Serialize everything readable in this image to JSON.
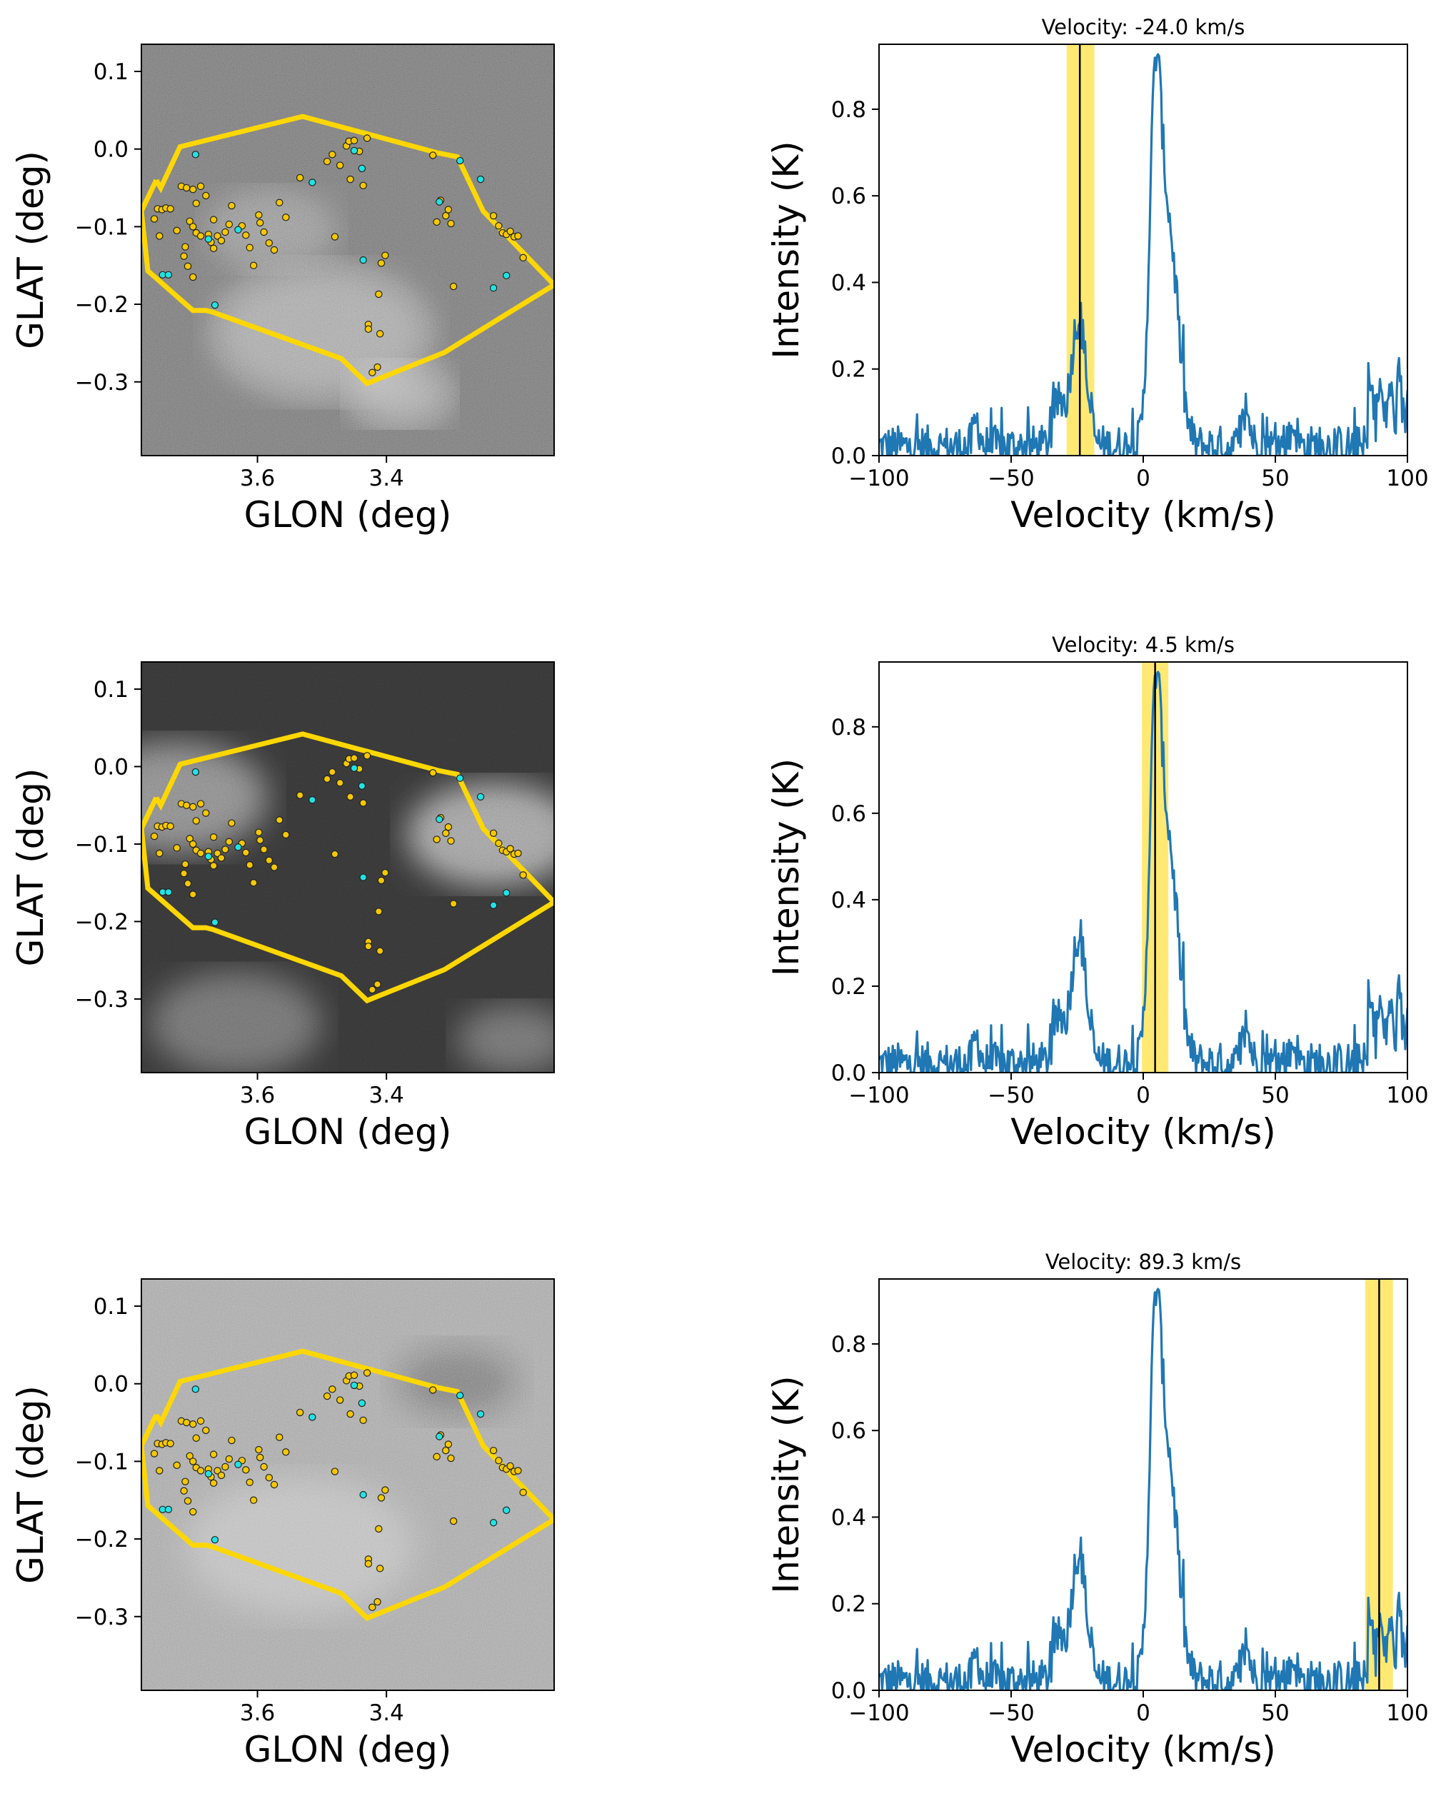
{
  "chart_data": [
    {
      "type": "image",
      "panel": "sky-map-1",
      "xlabel": "GLON (deg)",
      "ylabel": "GLAT (deg)",
      "xlim": [
        3.78,
        3.14
      ],
      "ylim": [
        -0.395,
        0.135
      ],
      "xticks": [
        3.6,
        3.4
      ],
      "xtick_labels": [
        "3.6",
        "3.4"
      ],
      "yticks": [
        0.1,
        0.0,
        -0.1,
        -0.2,
        -0.3
      ],
      "ytick_labels": [
        "0.1",
        "0.0",
        "−0.1",
        "−0.2",
        "−0.3"
      ],
      "background": "grayscale intensity map integrated around -24.0 km/s"
    },
    {
      "type": "line",
      "panel": "spectrum-1",
      "title": "Velocity: -24.0 km/s",
      "xlabel": "Velocity (km/s)",
      "ylabel": "Intensity (K)",
      "xlim": [
        -100,
        100
      ],
      "ylim": [
        0,
        0.95
      ],
      "xticks": [
        -100,
        -50,
        0,
        50,
        100
      ],
      "xtick_labels": [
        "−100",
        "−50",
        "0",
        "50",
        "100"
      ],
      "yticks": [
        0.0,
        0.2,
        0.4,
        0.6,
        0.8
      ],
      "ytick_labels": [
        "0.0",
        "0.2",
        "0.4",
        "0.6",
        "0.8"
      ],
      "marker_velocity": -24.0,
      "highlight_band": [
        -29.0,
        -18.5
      ]
    },
    {
      "type": "image",
      "panel": "sky-map-2",
      "xlabel": "GLON (deg)",
      "ylabel": "GLAT (deg)",
      "xlim": [
        3.78,
        3.14
      ],
      "ylim": [
        -0.395,
        0.135
      ],
      "xticks": [
        3.6,
        3.4
      ],
      "xtick_labels": [
        "3.6",
        "3.4"
      ],
      "yticks": [
        0.1,
        0.0,
        -0.1,
        -0.2,
        -0.3
      ],
      "ytick_labels": [
        "0.1",
        "0.0",
        "−0.1",
        "−0.2",
        "−0.3"
      ],
      "background": "grayscale intensity map integrated around 4.5 km/s"
    },
    {
      "type": "line",
      "panel": "spectrum-2",
      "title": "Velocity: 4.5 km/s",
      "xlabel": "Velocity (km/s)",
      "ylabel": "Intensity (K)",
      "xlim": [
        -100,
        100
      ],
      "ylim": [
        0,
        0.95
      ],
      "xticks": [
        -100,
        -50,
        0,
        50,
        100
      ],
      "xtick_labels": [
        "−100",
        "−50",
        "0",
        "50",
        "100"
      ],
      "yticks": [
        0.0,
        0.2,
        0.4,
        0.6,
        0.8
      ],
      "ytick_labels": [
        "0.0",
        "0.2",
        "0.4",
        "0.6",
        "0.8"
      ],
      "marker_velocity": 4.5,
      "highlight_band": [
        -0.5,
        9.5
      ]
    },
    {
      "type": "image",
      "panel": "sky-map-3",
      "xlabel": "GLON (deg)",
      "ylabel": "GLAT (deg)",
      "xlim": [
        3.78,
        3.14
      ],
      "ylim": [
        -0.395,
        0.135
      ],
      "xticks": [
        3.6,
        3.4
      ],
      "xtick_labels": [
        "3.6",
        "3.4"
      ],
      "yticks": [
        0.1,
        0.0,
        -0.1,
        -0.2,
        -0.3
      ],
      "ytick_labels": [
        "0.1",
        "0.0",
        "−0.1",
        "−0.2",
        "−0.3"
      ],
      "background": "grayscale intensity map integrated around 89.3 km/s"
    },
    {
      "type": "line",
      "panel": "spectrum-3",
      "title": "Velocity: 89.3 km/s",
      "xlabel": "Velocity (km/s)",
      "ylabel": "Intensity (K)",
      "xlim": [
        -100,
        100
      ],
      "ylim": [
        0,
        0.95
      ],
      "xticks": [
        -100,
        -50,
        0,
        50,
        100
      ],
      "xtick_labels": [
        "−100",
        "−50",
        "0",
        "50",
        "100"
      ],
      "yticks": [
        0.0,
        0.2,
        0.4,
        0.6,
        0.8
      ],
      "ytick_labels": [
        "0.0",
        "0.2",
        "0.4",
        "0.6",
        "0.8"
      ],
      "marker_velocity": 89.3,
      "highlight_band": [
        84.0,
        94.5
      ]
    }
  ],
  "region_polygon": {
    "color": "#ffd700",
    "glon": [
      3.757,
      3.75,
      3.72,
      3.53,
      3.32,
      3.29,
      3.25,
      3.14,
      3.31,
      3.43,
      3.47,
      3.67,
      3.68,
      3.7,
      3.77,
      3.78,
      3.757
    ],
    "glat": [
      -0.04,
      -0.05,
      0.003,
      0.042,
      -0.005,
      -0.01,
      -0.08,
      -0.175,
      -0.262,
      -0.302,
      -0.27,
      -0.21,
      -0.208,
      -0.208,
      -0.157,
      -0.08,
      -0.04
    ]
  },
  "sources": {
    "yellow_color": "#f5c800",
    "cyan_color": "#22e3e3",
    "yellow": [
      [
        3.755,
        -0.077
      ],
      [
        3.748,
        -0.078
      ],
      [
        3.742,
        -0.076
      ],
      [
        3.735,
        -0.077
      ],
      [
        3.76,
        -0.09
      ],
      [
        3.752,
        -0.112
      ],
      [
        3.725,
        -0.105
      ],
      [
        3.718,
        -0.048
      ],
      [
        3.71,
        -0.05
      ],
      [
        3.7,
        -0.052
      ],
      [
        3.695,
        -0.07
      ],
      [
        3.705,
        -0.093
      ],
      [
        3.7,
        -0.1
      ],
      [
        3.695,
        -0.108
      ],
      [
        3.712,
        -0.126
      ],
      [
        3.708,
        -0.151
      ],
      [
        3.7,
        -0.165
      ],
      [
        3.688,
        -0.048
      ],
      [
        3.68,
        -0.06
      ],
      [
        3.676,
        -0.11
      ],
      [
        3.672,
        -0.12
      ],
      [
        3.668,
        -0.128
      ],
      [
        3.662,
        -0.112
      ],
      [
        3.656,
        -0.118
      ],
      [
        3.65,
        -0.107
      ],
      [
        3.644,
        -0.097
      ],
      [
        3.668,
        -0.091
      ],
      [
        3.64,
        -0.073
      ],
      [
        3.624,
        -0.099
      ],
      [
        3.618,
        -0.111
      ],
      [
        3.612,
        -0.127
      ],
      [
        3.606,
        -0.15
      ],
      [
        3.596,
        -0.095
      ],
      [
        3.59,
        -0.107
      ],
      [
        3.582,
        -0.121
      ],
      [
        3.574,
        -0.13
      ],
      [
        3.566,
        -0.069
      ],
      [
        3.534,
        -0.037
      ],
      [
        3.492,
        -0.016
      ],
      [
        3.484,
        -0.007
      ],
      [
        3.472,
        -0.021
      ],
      [
        3.462,
        0.004
      ],
      [
        3.458,
        0.01
      ],
      [
        3.45,
        0.011
      ],
      [
        3.442,
        -0.003
      ],
      [
        3.436,
        -0.047
      ],
      [
        3.43,
        0.014
      ],
      [
        3.456,
        -0.039
      ],
      [
        3.41,
        -0.238
      ],
      [
        3.422,
        -0.288
      ],
      [
        3.414,
        -0.281
      ],
      [
        3.428,
        -0.226
      ],
      [
        3.428,
        -0.232
      ],
      [
        3.412,
        -0.187
      ],
      [
        3.402,
        -0.137
      ],
      [
        3.408,
        -0.147
      ],
      [
        3.48,
        -0.113
      ],
      [
        3.328,
        -0.008
      ],
      [
        3.316,
        -0.066
      ],
      [
        3.308,
        -0.086
      ],
      [
        3.304,
        -0.078
      ],
      [
        3.3,
        -0.096
      ],
      [
        3.296,
        -0.177
      ],
      [
        3.322,
        -0.094
      ],
      [
        3.234,
        -0.086
      ],
      [
        3.226,
        -0.099
      ],
      [
        3.22,
        -0.108
      ],
      [
        3.214,
        -0.11
      ],
      [
        3.208,
        -0.106
      ],
      [
        3.202,
        -0.113
      ],
      [
        3.196,
        -0.112
      ],
      [
        3.188,
        -0.14
      ],
      [
        3.714,
        -0.138
      ],
      [
        3.688,
        -0.112
      ],
      [
        3.598,
        -0.085
      ],
      [
        3.556,
        -0.088
      ]
    ],
    "cyan": [
      [
        3.747,
        -0.162
      ],
      [
        3.738,
        -0.162
      ],
      [
        3.696,
        -0.007
      ],
      [
        3.676,
        -0.116
      ],
      [
        3.666,
        -0.201
      ],
      [
        3.63,
        -0.104
      ],
      [
        3.515,
        -0.043
      ],
      [
        3.45,
        -0.002
      ],
      [
        3.438,
        -0.025
      ],
      [
        3.436,
        -0.143
      ],
      [
        3.318,
        -0.068
      ],
      [
        3.286,
        -0.015
      ],
      [
        3.254,
        -0.039
      ],
      [
        3.214,
        -0.163
      ],
      [
        3.234,
        -0.179
      ]
    ]
  }
}
